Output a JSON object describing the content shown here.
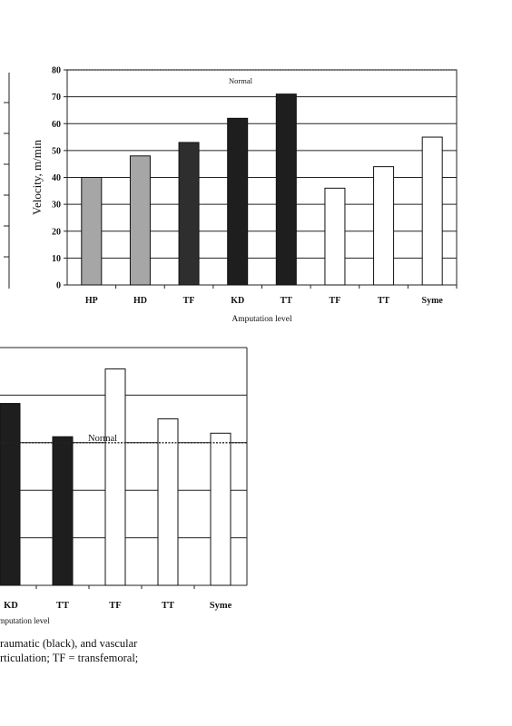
{
  "chart_data": [
    {
      "type": "bar",
      "ylabel": "Velocity, m/min",
      "xlabel": "Amputation level",
      "ylim": [
        0,
        80
      ],
      "yticks": [
        0,
        10,
        20,
        30,
        40,
        50,
        60,
        70,
        80
      ],
      "grid": true,
      "categories": [
        "HP",
        "HD",
        "TF",
        "KD",
        "TT",
        "TF",
        "TT",
        "Syme"
      ],
      "values": [
        40,
        48,
        53,
        62,
        71,
        36,
        44,
        55
      ],
      "bar_colors": [
        "#a6a6a6",
        "#a6a6a6",
        "#2e2e2e",
        "#1e1e1e",
        "#1e1e1e",
        "#ffffff",
        "#ffffff",
        "#ffffff"
      ],
      "annotation": "Normal",
      "normal_value": 80
    },
    {
      "type": "bar",
      "xlabel": "Amputation level",
      "categories": [
        "KD",
        "TT",
        "TF",
        "TT",
        "Syme"
      ],
      "values": [
        153,
        125,
        182,
        140,
        128
      ],
      "ylim": [
        0,
        200
      ],
      "yticks": [
        0,
        40,
        80,
        120,
        160,
        200
      ],
      "grid": true,
      "bar_colors": [
        "#1e1e1e",
        "#1e1e1e",
        "#ffffff",
        "#ffffff",
        "#ffffff"
      ],
      "annotation": "Normal",
      "normal_value": 120
    }
  ],
  "caption": {
    "line1": "raumatic (black), and vascular",
    "line2": "rticulation; TF = transfemoral;"
  }
}
